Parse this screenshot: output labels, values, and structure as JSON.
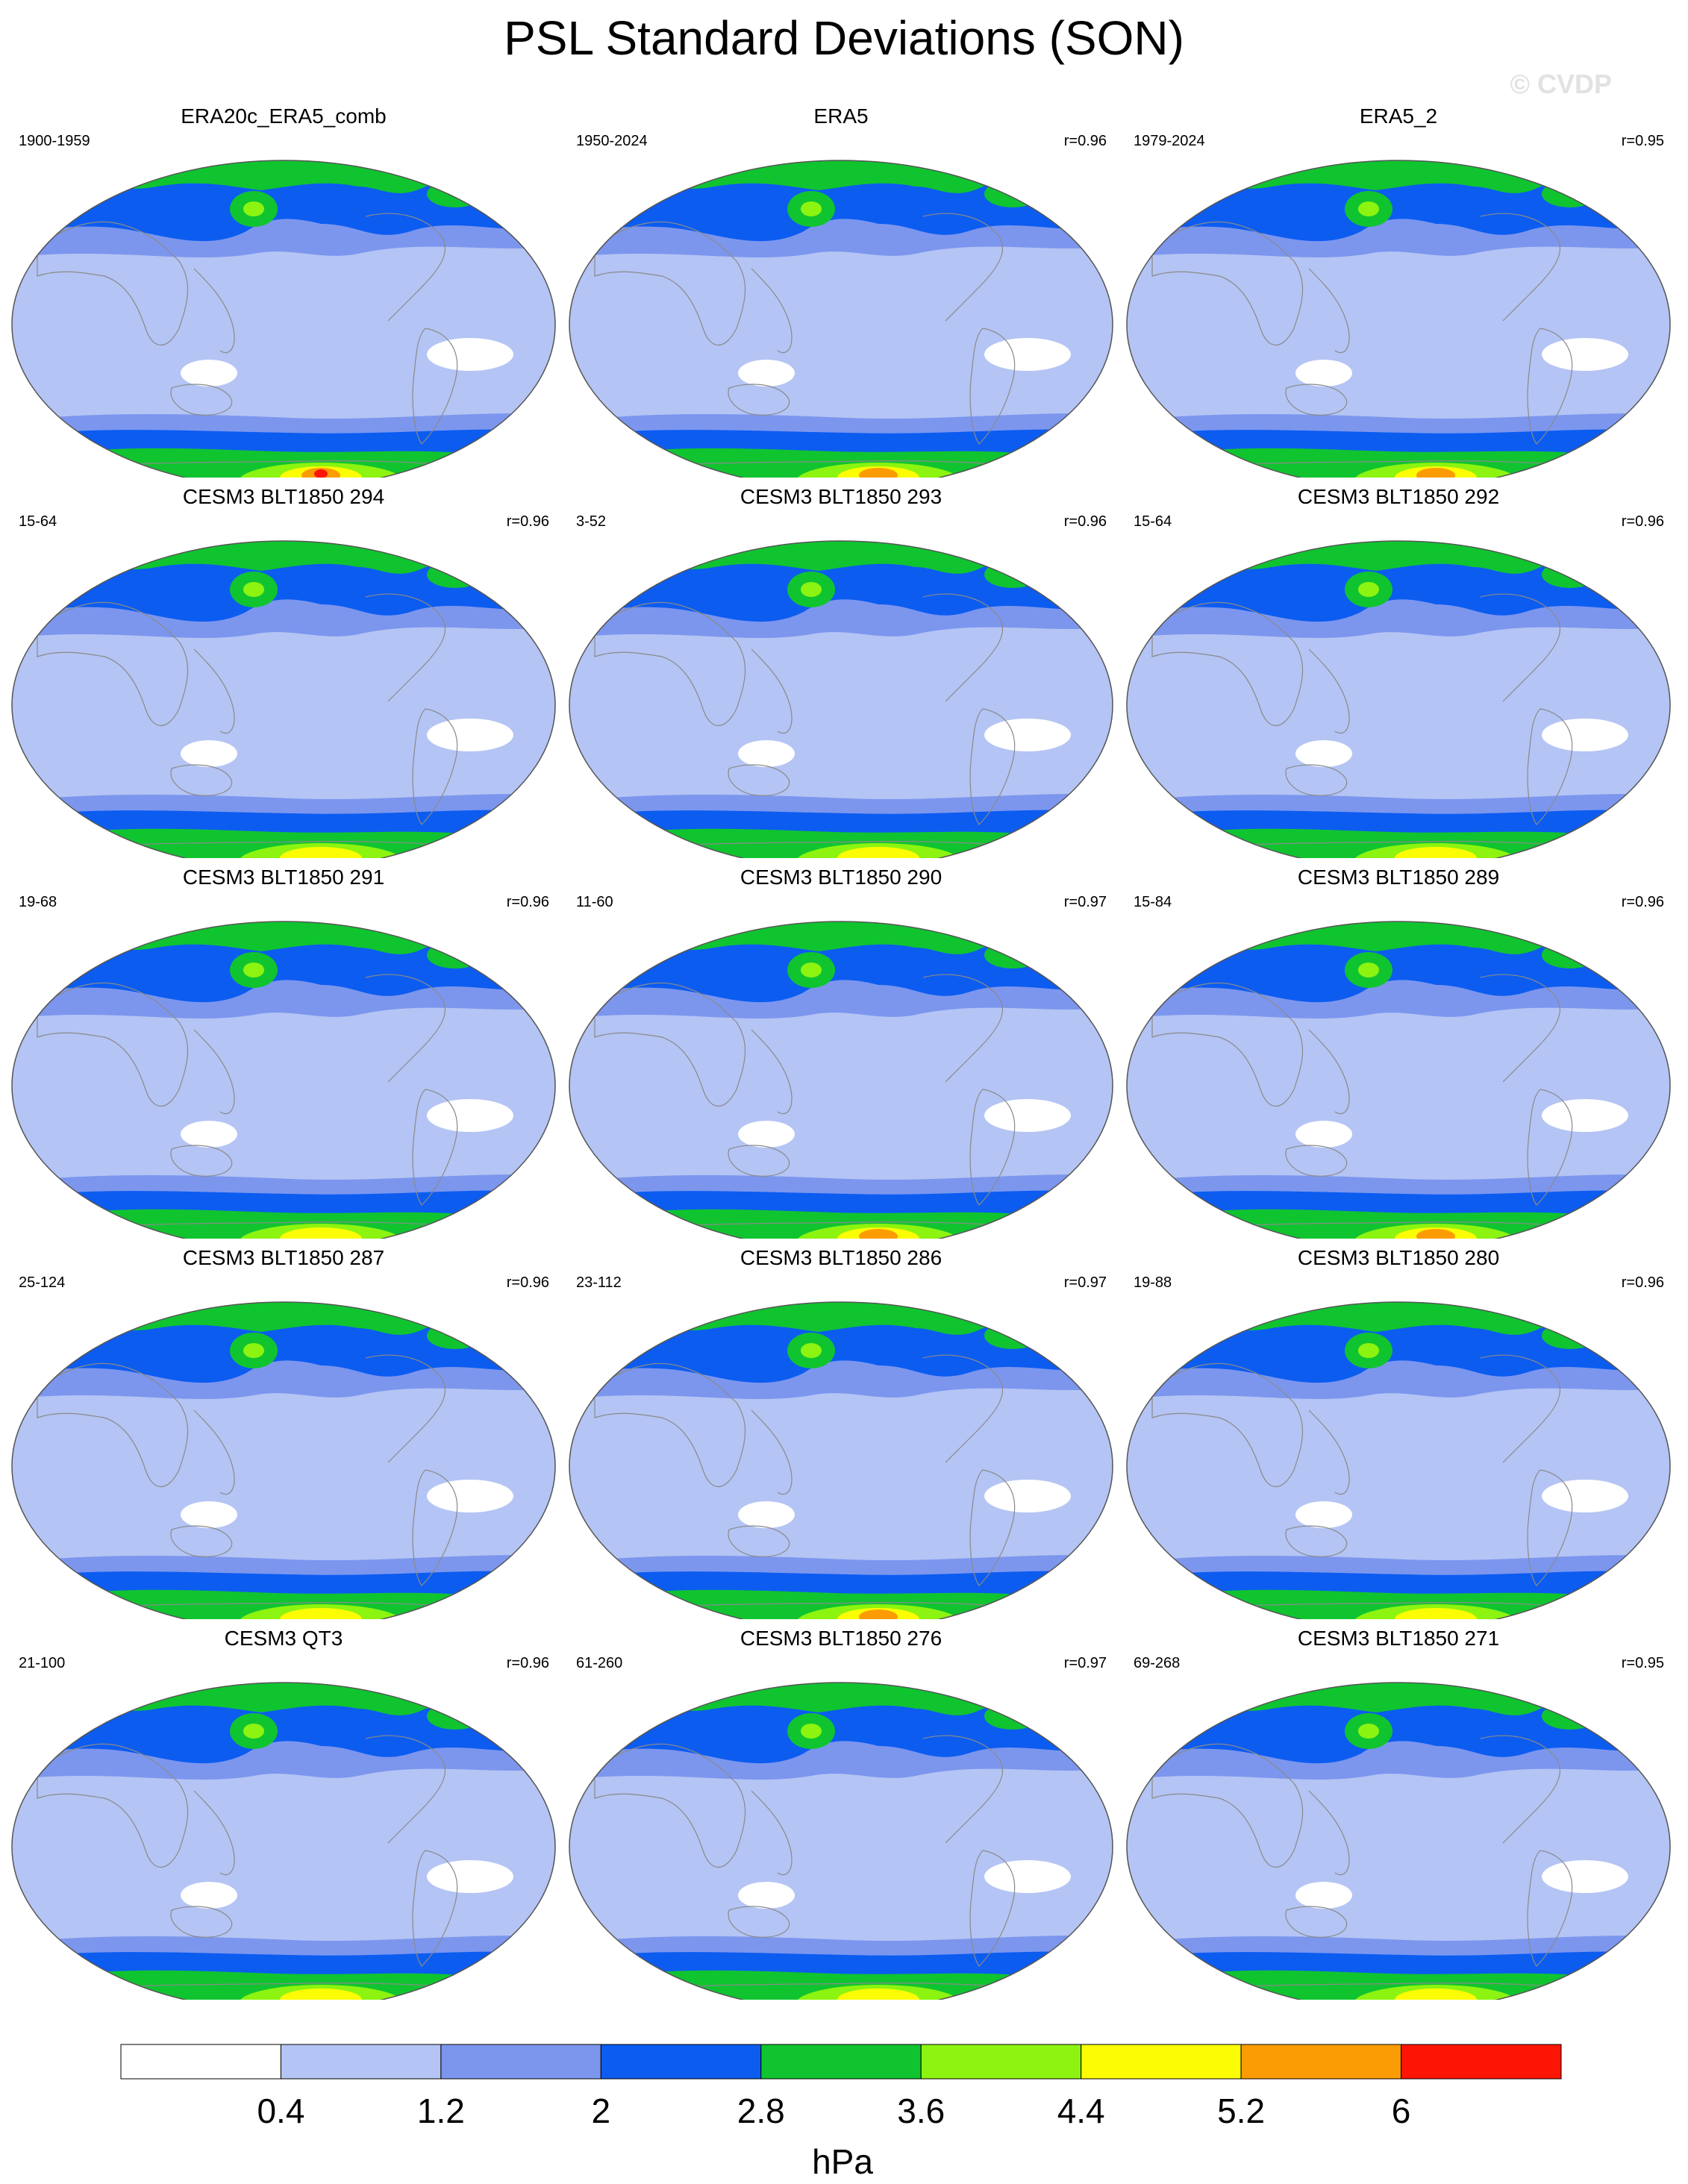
{
  "title": "PSL Standard Deviations (SON)",
  "watermark": "© CVDP",
  "units": "hPa",
  "colorbar": {
    "labels": [
      "0.4",
      "1.2",
      "2",
      "2.8",
      "3.6",
      "4.4",
      "5.2",
      "6"
    ],
    "colors": [
      "#ffffff",
      "#b4c4f4",
      "#7c96ee",
      "#0c5cf0",
      "#10c430",
      "#8cf410",
      "#fcfc04",
      "#fc9c04",
      "#fc1404"
    ]
  },
  "panels": [
    {
      "title": "ERA20c_ERA5_comb",
      "period": "1900-1959",
      "corr": "",
      "peak": "red"
    },
    {
      "title": "ERA5",
      "period": "1950-2024",
      "corr": "r=0.96",
      "peak": "orange"
    },
    {
      "title": "ERA5_2",
      "period": "1979-2024",
      "corr": "r=0.95",
      "peak": "orange"
    },
    {
      "title": "CESM3 BLT1850 294",
      "period": "15-64",
      "corr": "r=0.96",
      "peak": "yellow"
    },
    {
      "title": "CESM3 BLT1850 293",
      "period": "3-52",
      "corr": "r=0.96",
      "peak": "yellow"
    },
    {
      "title": "CESM3 BLT1850 292",
      "period": "15-64",
      "corr": "r=0.96",
      "peak": "yellow"
    },
    {
      "title": "CESM3 BLT1850 291",
      "period": "19-68",
      "corr": "r=0.96",
      "peak": "yellow"
    },
    {
      "title": "CESM3 BLT1850 290",
      "period": "11-60",
      "corr": "r=0.97",
      "peak": "orange"
    },
    {
      "title": "CESM3 BLT1850 289",
      "period": "15-84",
      "corr": "r=0.96",
      "peak": "orange"
    },
    {
      "title": "CESM3 BLT1850 287",
      "period": "25-124",
      "corr": "r=0.96",
      "peak": "yellow"
    },
    {
      "title": "CESM3 BLT1850 286",
      "period": "23-112",
      "corr": "r=0.97",
      "peak": "orange"
    },
    {
      "title": "CESM3 BLT1850 280",
      "period": "19-88",
      "corr": "r=0.96",
      "peak": "yellow"
    },
    {
      "title": "CESM3 QT3",
      "period": "21-100",
      "corr": "r=0.96",
      "peak": "yellow"
    },
    {
      "title": "CESM3 BLT1850 276",
      "period": "61-260",
      "corr": "r=0.97",
      "peak": "yellow"
    },
    {
      "title": "CESM3 BLT1850 271",
      "period": "69-268",
      "corr": "r=0.95",
      "peak": "yellow"
    }
  ]
}
